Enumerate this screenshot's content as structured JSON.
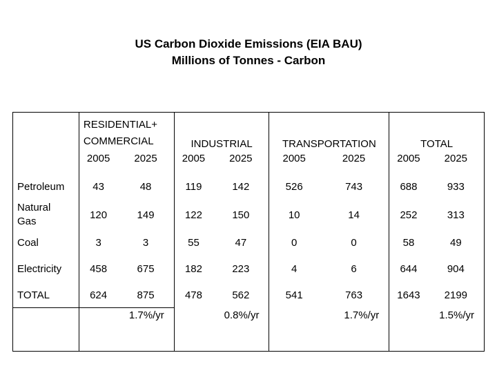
{
  "title": {
    "line1": "US Carbon Dioxide Emissions (EIA BAU)",
    "line2": "Millions of Tonnes - Carbon"
  },
  "sectors": [
    {
      "line1": "RESIDENTIAL+",
      "line2": "COMMERCIAL"
    },
    {
      "label": "INDUSTRIAL"
    },
    {
      "label": "TRANSPORTATION"
    },
    {
      "label": "TOTAL"
    }
  ],
  "years": [
    "2005",
    "2025",
    "2005",
    "2025",
    "2005",
    "2025",
    "2005",
    "2025"
  ],
  "rows": [
    {
      "label": "Petroleum",
      "values": [
        "43",
        "48",
        "119",
        "142",
        "526",
        "743",
        "688",
        "933"
      ]
    },
    {
      "label_line1": "Natural",
      "label_line2": "Gas",
      "values": [
        "120",
        "149",
        "122",
        "150",
        "10",
        "14",
        "252",
        "313"
      ]
    },
    {
      "label": "Coal",
      "values": [
        "3",
        "3",
        "55",
        "47",
        "0",
        "0",
        "58",
        "49"
      ]
    },
    {
      "label": "Electricity",
      "values": [
        "458",
        "675",
        "182",
        "223",
        "4",
        "6",
        "644",
        "904"
      ]
    },
    {
      "label": "TOTAL",
      "values": [
        "624",
        "875",
        "478",
        "562",
        "541",
        "763",
        "1643",
        "2199"
      ]
    }
  ],
  "growth": [
    "1.7%/yr",
    "0.8%/yr",
    "1.7%/yr",
    "1.5%/yr"
  ]
}
